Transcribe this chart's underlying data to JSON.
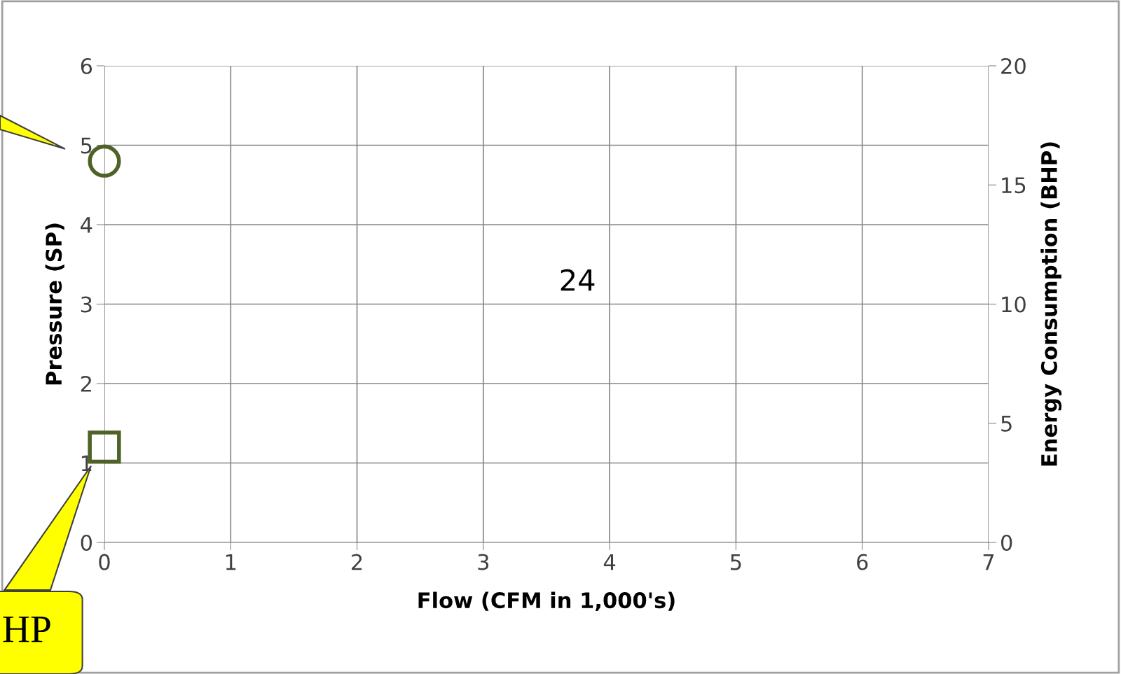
{
  "chart_data": {
    "type": "scatter",
    "xlabel": "Flow (CFM in 1,000's)",
    "ylabel": "Pressure (SP)",
    "y2label": "Energy Consumption (BHP)",
    "x": [
      0
    ],
    "series": [
      {
        "color": "#4f6228",
        "marker": "circle",
        "values": [
          4.8
        ]
      },
      {
        "color": "#4f6228",
        "marker": "square",
        "values": [
          4
        ],
        "axis": "y2"
      }
    ],
    "xlim": [
      0,
      7
    ],
    "xticks": [
      0,
      1,
      2,
      3,
      4,
      5,
      6,
      7
    ],
    "ylim": [
      0,
      6
    ],
    "yticks": [
      0,
      1,
      2,
      3,
      4,
      5,
      6
    ],
    "y2lim": [
      0,
      20
    ],
    "y2ticks": [
      0,
      5,
      10,
      15,
      20
    ],
    "grid": true,
    "annotations": [
      "24",
      "HP"
    ]
  }
}
